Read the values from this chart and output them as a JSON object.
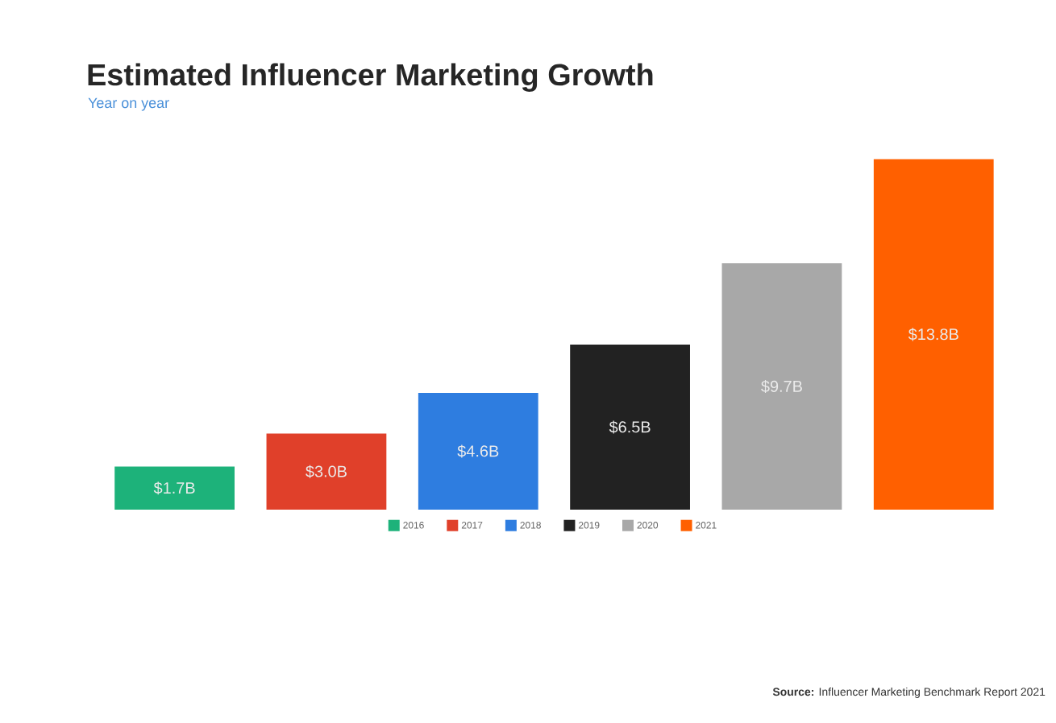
{
  "chart_data": {
    "type": "bar",
    "title": "Estimated Influencer Marketing Growth",
    "subtitle": "Year on year",
    "annotations": [
      "**Source:** Influencer Marketing Benchmark Report 2021"
    ],
    "categories": [
      null,
      null,
      null,
      null,
      null,
      null
    ],
    "legend": "bottom",
    "stacked": true,
    "series": [
      {
        "name": "2016",
        "color": "#1db27a",
        "values": [
          1.7,
          null,
          null,
          null,
          null,
          null
        ],
        "value_labels": [
          "$1.7B",
          null,
          null,
          null,
          null,
          null
        ]
      },
      {
        "name": "2017",
        "color": "#e0402a",
        "values": [
          null,
          3.0,
          null,
          null,
          null,
          null
        ],
        "value_labels": [
          null,
          "$3.0B",
          null,
          null,
          null,
          null
        ]
      },
      {
        "name": "2018",
        "color": "#2e7de0",
        "values": [
          null,
          null,
          4.6,
          null,
          null,
          null
        ],
        "value_labels": [
          null,
          null,
          "$4.6B",
          null,
          null,
          null
        ]
      },
      {
        "name": "2019",
        "color": "#222222",
        "values": [
          null,
          null,
          null,
          6.5,
          null,
          null
        ],
        "value_labels": [
          null,
          null,
          null,
          "$6.5B",
          null,
          null
        ]
      },
      {
        "name": "2020",
        "color": "#a8a8a8",
        "values": [
          null,
          null,
          null,
          null,
          9.7,
          null
        ],
        "value_labels": [
          null,
          null,
          null,
          null,
          "$9.7B",
          null
        ]
      },
      {
        "name": "2021",
        "color": "#ff6000",
        "values": [
          null,
          null,
          null,
          null,
          null,
          13.8
        ],
        "value_labels": [
          null,
          null,
          null,
          null,
          null,
          "$13.8B"
        ]
      }
    ]
  }
}
